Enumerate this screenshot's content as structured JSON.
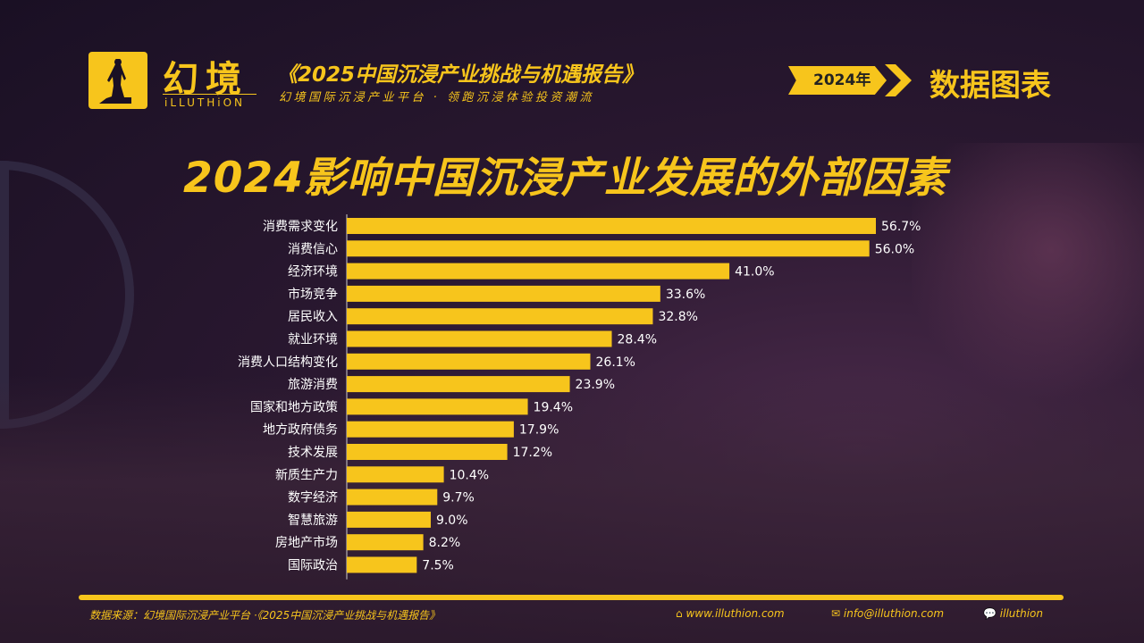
{
  "header": {
    "brand_cn": "幻境",
    "brand_en": "iLLUTHiON",
    "report_title": "《2025中国沉浸产业挑战与机遇报告》",
    "report_subtitle": "幻境国际沉浸产业平台 · 领跑沉浸体验投资潮流",
    "year_badge": "2024年",
    "section_title": "数据图表"
  },
  "chart_data": {
    "type": "bar",
    "orientation": "horizontal",
    "title": "2024影响中国沉浸产业发展的外部因素",
    "categories": [
      "消费需求变化",
      "消费信心",
      "经济环境",
      "市场竞争",
      "居民收入",
      "就业环境",
      "消费人口结构变化",
      "旅游消费",
      "国家和地方政策",
      "地方政府债务",
      "技术发展",
      "新质生产力",
      "数字经济",
      "智慧旅游",
      "房地产市场",
      "国际政治"
    ],
    "values": [
      56.7,
      56.0,
      41.0,
      33.6,
      32.8,
      28.4,
      26.1,
      23.9,
      19.4,
      17.9,
      17.2,
      10.4,
      9.7,
      9.0,
      8.2,
      7.5
    ],
    "value_labels": [
      "56.7%",
      "56.0%",
      "41.0%",
      "33.6%",
      "32.8%",
      "28.4%",
      "26.1%",
      "23.9%",
      "19.4%",
      "17.9%",
      "17.2%",
      "10.4%",
      "9.7%",
      "9.0%",
      "8.2%",
      "7.5%"
    ],
    "unit": "%",
    "xlim": [
      0,
      56.7
    ],
    "bar_color": "#f7c51c"
  },
  "footer": {
    "source": "数据来源：幻境国际沉浸产业平台 ·《2025中国沉浸产业挑战与机遇报告》",
    "website": "www.illuthion.com",
    "email": "info@illuthion.com",
    "wechat": "illuthion"
  }
}
